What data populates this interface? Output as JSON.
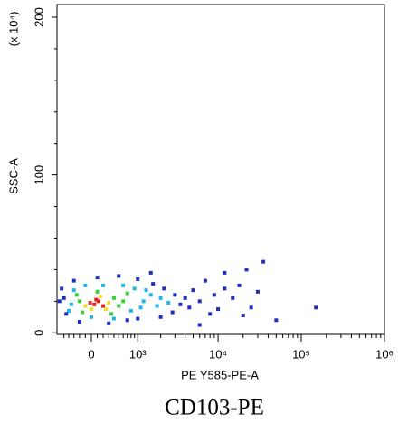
{
  "chart_data": {
    "type": "scatter",
    "xlabel": "PE Y585-PE-A",
    "ylabel": "SSC-A",
    "y_multiplier": "(x 10⁴)",
    "caption": "CD103-PE",
    "xscale": "biexponential",
    "xlim": [
      -660,
      1000000
    ],
    "ylim": [
      -1,
      208
    ],
    "xticks": [
      0,
      {
        "value": 1000,
        "label": "10³"
      },
      {
        "value": 10000,
        "label": "10⁴"
      },
      {
        "value": 100000,
        "label": "10⁵"
      },
      {
        "value": 1000000,
        "label": "10⁶"
      }
    ],
    "xminorticks": [
      -500,
      -400,
      -300,
      -200,
      -100,
      100,
      200,
      300,
      400,
      500,
      600,
      700,
      800,
      900,
      2000,
      3000,
      4000,
      5000,
      6000,
      7000,
      8000,
      9000,
      20000,
      30000,
      40000,
      50000,
      60000,
      70000,
      80000,
      90000,
      200000,
      300000,
      400000,
      500000,
      600000,
      700000,
      800000,
      900000
    ],
    "yticks": [
      0,
      100,
      200
    ],
    "yminorticks": [
      20,
      40,
      60,
      80,
      120,
      140,
      160,
      180
    ],
    "density_colors": [
      "#1c2fc4",
      "#22b6e8",
      "#3ccf3c",
      "#f2e020",
      "#e32020"
    ],
    "x": [
      50,
      120,
      -20,
      200,
      80,
      -100,
      300,
      150,
      0,
      250,
      -200,
      400,
      500,
      -150,
      100,
      350,
      600,
      -250,
      700,
      -350,
      -300,
      800,
      900,
      1200,
      1500,
      1100,
      2000,
      -400,
      600,
      200,
      -100,
      1800,
      2500,
      1300,
      400,
      0,
      -500,
      -450,
      -550,
      -300,
      100,
      500,
      1000,
      1600,
      2200,
      3000,
      3500,
      4000,
      2800,
      2000,
      1000,
      -200,
      300,
      700,
      4500,
      5000,
      6000,
      7000,
      8000,
      9000,
      12000,
      15000,
      18000,
      22000,
      25000,
      30000,
      35000,
      12000,
      20000,
      10000,
      150000,
      50000,
      1500,
      -600,
      6000
    ],
    "values": [
      18,
      20,
      19,
      17,
      21,
      17,
      19,
      23,
      15,
      15,
      20,
      22,
      17,
      13,
      26,
      12,
      20,
      24,
      25,
      18,
      27,
      14,
      28,
      20,
      24,
      16,
      22,
      14,
      30,
      30,
      30,
      17,
      19,
      27,
      9,
      10,
      22,
      12,
      28,
      33,
      35,
      36,
      34,
      31,
      28,
      24,
      18,
      22,
      13,
      10,
      9,
      7,
      6,
      8,
      16,
      27,
      20,
      33,
      12,
      24,
      38,
      22,
      30,
      40,
      16,
      26,
      45,
      28,
      11,
      15,
      16,
      8,
      38,
      20,
      5
    ],
    "density": [
      4,
      4,
      4,
      4,
      4,
      3,
      3,
      3,
      3,
      3,
      2,
      2,
      2,
      2,
      2,
      2,
      2,
      2,
      2,
      1,
      1,
      1,
      1,
      1,
      1,
      1,
      1,
      1,
      1,
      1,
      1,
      1,
      1,
      1,
      1,
      1,
      0,
      0,
      0,
      0,
      0,
      0,
      0,
      0,
      0,
      0,
      0,
      0,
      0,
      0,
      0,
      0,
      0,
      0,
      0,
      0,
      0,
      0,
      0,
      0,
      0,
      0,
      0,
      0,
      0,
      0,
      0,
      0,
      0,
      0,
      0,
      0,
      0,
      0,
      0
    ]
  }
}
